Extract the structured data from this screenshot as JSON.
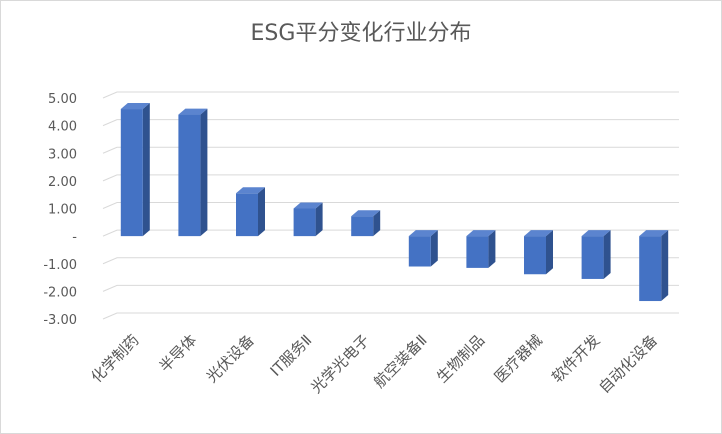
{
  "chart_data": {
    "type": "bar",
    "title": "ESG平分变化行业分布",
    "xlabel": "",
    "ylabel": "",
    "ylim": [
      -3,
      5
    ],
    "yticks": [
      5,
      4,
      3,
      2,
      1,
      0,
      -1,
      -2,
      -3
    ],
    "ytick_labels": [
      "5.00",
      "4.00",
      "3.00",
      "2.00",
      "1.00",
      "-",
      "-1.00",
      "-2.00",
      "-3.00"
    ],
    "categories": [
      "化学制药",
      "半导体",
      "光伏设备",
      "IT服务Ⅱ",
      "光学光电子",
      "航空装备Ⅱ",
      "生物制品",
      "医疗器械",
      "软件开发",
      "自动化设备"
    ],
    "values": [
      4.6,
      4.4,
      1.55,
      1.0,
      0.72,
      -1.1,
      -1.15,
      -1.38,
      -1.55,
      -2.35
    ],
    "bar_color": "#4472c4",
    "bar_side_color": "#2f528f",
    "grid": true,
    "style_3d": true
  }
}
